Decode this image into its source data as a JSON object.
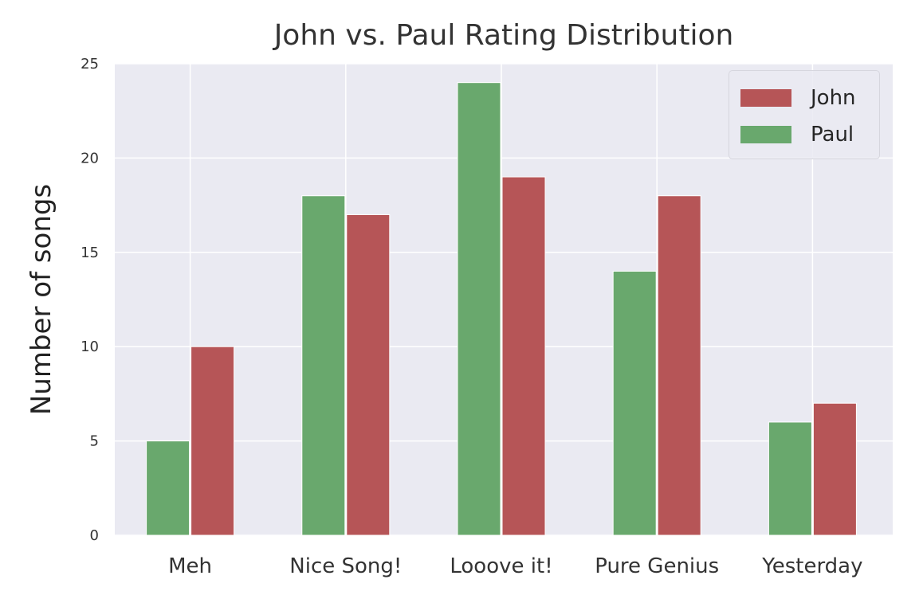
{
  "chart_data": {
    "type": "bar",
    "title": "John vs. Paul Rating Distribution",
    "xlabel": "",
    "ylabel": "Number of songs",
    "categories": [
      "Meh",
      "Nice Song!",
      "Looove it!",
      "Pure Genius",
      "Yesterday"
    ],
    "series": [
      {
        "name": "Paul",
        "values": [
          5,
          18,
          24,
          14,
          6
        ],
        "color": "#69a86d"
      },
      {
        "name": "John",
        "values": [
          10,
          17,
          19,
          18,
          7
        ],
        "color": "#b65557"
      }
    ],
    "legend_order": [
      "John",
      "Paul"
    ],
    "ylim": [
      0,
      25
    ],
    "yticks": [
      0,
      5,
      10,
      15,
      20,
      25
    ],
    "grid": true,
    "legend_position": "top-right",
    "colors": {
      "background": "#eaeaf2",
      "grid": "#ffffff"
    }
  }
}
